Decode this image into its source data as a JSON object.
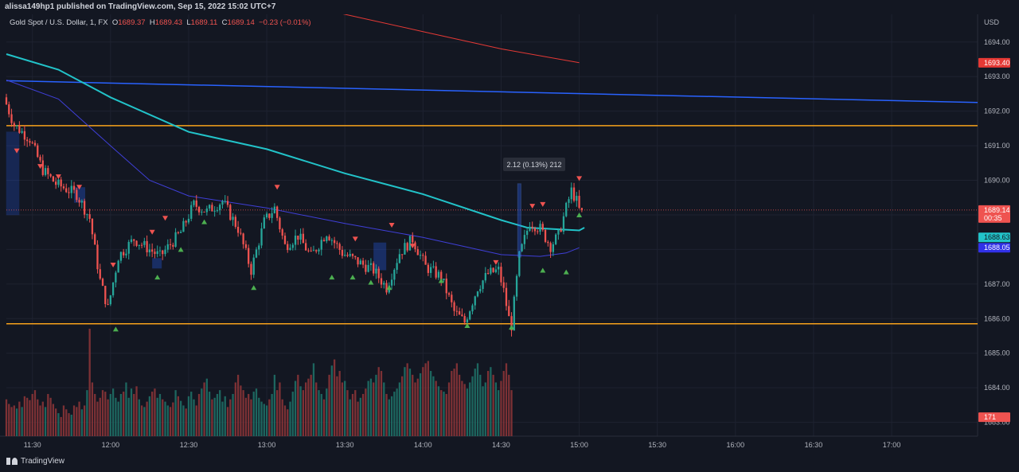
{
  "header": {
    "published": "alissa149hp1 published on TradingView.com, Sep 15, 2022 15:02 UTC+7"
  },
  "legend": {
    "symbol": "Gold Spot / U.S. Dollar, 1, FX",
    "o_label": "O",
    "o": "1689.37",
    "h_label": "H",
    "h": "1689.43",
    "l_label": "L",
    "l": "1689.11",
    "c_label": "C",
    "c": "1689.14",
    "change": "−0.23 (−0.01%)"
  },
  "axis": {
    "currency": "USD",
    "price_ticks": [
      "1694.00",
      "1693.00",
      "1692.00",
      "1691.00",
      "1690.00",
      "1687.00",
      "1686.00",
      "1685.00",
      "1684.00",
      "1683.00"
    ],
    "time_ticks": [
      "11:30",
      "12:00",
      "12:30",
      "13:00",
      "13:30",
      "14:00",
      "14:30",
      "15:00",
      "15:30",
      "16:00",
      "16:30",
      "17:00"
    ]
  },
  "price_labels": {
    "red_line": "1693.40",
    "last_price": "1689.14",
    "countdown": "00:35",
    "teal_ma": "1688.63",
    "blue_ma": "1688.05",
    "volume": "171"
  },
  "measure_label": "2.12 (0.13%) 212",
  "footer": {
    "brand": "TradingView"
  },
  "colors": {
    "background": "#131722",
    "up": "#26a69a",
    "down": "#ef5350",
    "support_resistance": "#f7a21b",
    "trend_line": "#2962ff",
    "teal_ma": "#22c3c9",
    "blue_ma": "#3f3fd8",
    "red_ma": "#e53935"
  },
  "chart_data": {
    "type": "candlestick",
    "title": "Gold Spot / U.S. Dollar, 1, FX",
    "ylabel": "USD",
    "ylim": [
      1682.6,
      1694.8
    ],
    "xlim": [
      "11:20",
      "17:33"
    ],
    "horizontal_lines": [
      1691.58,
      1685.85
    ],
    "trend_line": {
      "from": [
        "11:20",
        1692.88
      ],
      "to": [
        "17:33",
        1692.25
      ]
    },
    "measure": {
      "from": 1687.78,
      "to": 1689.9,
      "text": "2.12 (0.13%) 212"
    },
    "last_close": 1689.14,
    "anchors": [
      [
        "11:20",
        1692.4
      ],
      [
        "11:24",
        1691.6
      ],
      [
        "11:30",
        1691.2
      ],
      [
        "11:35",
        1690.3
      ],
      [
        "11:40",
        1689.9
      ],
      [
        "11:48",
        1689.6
      ],
      [
        "11:53",
        1688.9
      ],
      [
        "11:57",
        1687.1
      ],
      [
        "12:00",
        1686.3
      ],
      [
        "12:04",
        1687.8
      ],
      [
        "12:10",
        1688.3
      ],
      [
        "12:16",
        1688.0
      ],
      [
        "12:20",
        1687.8
      ],
      [
        "12:28",
        1688.5
      ],
      [
        "12:33",
        1689.3
      ],
      [
        "12:38",
        1689.1
      ],
      [
        "12:44",
        1689.4
      ],
      [
        "12:50",
        1688.6
      ],
      [
        "12:55",
        1687.4
      ],
      [
        "13:00",
        1688.8
      ],
      [
        "13:04",
        1689.2
      ],
      [
        "13:08",
        1688.1
      ],
      [
        "13:13",
        1688.4
      ],
      [
        "13:18",
        1687.8
      ],
      [
        "13:24",
        1688.5
      ],
      [
        "13:30",
        1687.9
      ],
      [
        "13:37",
        1687.6
      ],
      [
        "13:42",
        1687.4
      ],
      [
        "13:47",
        1686.9
      ],
      [
        "13:52",
        1687.9
      ],
      [
        "13:57",
        1688.3
      ],
      [
        "14:02",
        1687.5
      ],
      [
        "14:08",
        1687.2
      ],
      [
        "14:13",
        1686.2
      ],
      [
        "14:17",
        1685.9
      ],
      [
        "14:22",
        1686.9
      ],
      [
        "14:26",
        1687.3
      ],
      [
        "14:30",
        1687.4
      ],
      [
        "14:32",
        1686.8
      ],
      [
        "14:34",
        1686.0
      ],
      [
        "14:35",
        1685.8
      ],
      [
        "14:38",
        1687.8
      ],
      [
        "14:42",
        1688.8
      ],
      [
        "14:46",
        1688.6
      ],
      [
        "14:50",
        1688.1
      ],
      [
        "14:53",
        1688.4
      ],
      [
        "14:56",
        1689.2
      ],
      [
        "14:58",
        1689.7
      ],
      [
        "15:00",
        1689.4
      ],
      [
        "15:01",
        1689.14
      ]
    ],
    "teal_ma": [
      [
        "11:20",
        1693.65
      ],
      [
        "11:40",
        1693.2
      ],
      [
        "12:00",
        1692.4
      ],
      [
        "12:30",
        1691.4
      ],
      [
        "13:00",
        1690.9
      ],
      [
        "13:30",
        1690.2
      ],
      [
        "14:00",
        1689.6
      ],
      [
        "14:30",
        1688.85
      ],
      [
        "14:40",
        1688.63
      ],
      [
        "15:00",
        1688.55
      ],
      [
        "15:02",
        1688.63
      ]
    ],
    "blue_ma": [
      [
        "11:20",
        1692.9
      ],
      [
        "11:40",
        1692.35
      ],
      [
        "12:00",
        1691.0
      ],
      [
        "12:15",
        1690.0
      ],
      [
        "12:30",
        1689.55
      ],
      [
        "13:00",
        1689.2
      ],
      [
        "13:30",
        1688.75
      ],
      [
        "14:00",
        1688.35
      ],
      [
        "14:30",
        1687.85
      ],
      [
        "14:45",
        1687.8
      ],
      [
        "14:55",
        1687.9
      ],
      [
        "15:00",
        1688.05
      ]
    ],
    "red_ma": [
      [
        "13:20",
        1694.95
      ],
      [
        "13:30",
        1694.8
      ],
      [
        "14:00",
        1694.3
      ],
      [
        "14:30",
        1693.8
      ],
      [
        "15:00",
        1693.4
      ]
    ],
    "volume": {
      "last": 171,
      "bars": [
        48,
        42,
        38,
        40,
        36,
        45,
        38,
        52,
        50,
        47,
        55,
        60,
        48,
        40,
        45,
        38,
        55,
        50,
        42,
        36,
        30,
        25,
        40,
        35,
        30,
        28,
        40,
        38,
        45,
        35,
        40,
        60,
        140,
        70,
        55,
        45,
        50,
        60,
        58,
        48,
        55,
        62,
        50,
        45,
        55,
        58,
        70,
        50,
        62,
        55,
        65,
        48,
        40,
        38,
        45,
        52,
        58,
        62,
        50,
        55,
        48,
        45,
        40,
        38,
        44,
        60,
        52,
        46,
        40,
        36,
        52,
        58,
        48,
        40,
        55,
        62,
        70,
        75,
        58,
        48,
        50,
        55,
        60,
        45,
        52,
        38,
        48,
        55,
        70,
        80,
        66,
        60,
        50,
        55,
        48,
        58,
        62,
        50,
        45,
        42,
        40,
        48,
        55,
        80,
        60,
        70,
        48,
        40,
        35,
        45,
        58,
        72,
        80,
        65,
        60,
        70,
        75,
        80,
        95,
        70,
        60,
        55,
        48,
        62,
        80,
        92,
        100,
        78,
        85,
        70,
        72,
        60,
        48,
        55,
        60,
        45,
        50,
        55,
        62,
        72,
        75,
        70,
        80,
        90,
        85,
        70,
        55,
        48,
        52,
        58,
        62,
        70,
        78,
        90,
        95,
        88,
        80,
        70,
        75,
        82,
        90,
        95,
        98,
        85,
        78,
        72,
        65,
        60,
        58,
        55,
        70,
        85,
        88,
        95,
        80,
        72,
        68,
        62,
        70,
        78,
        88,
        95,
        80,
        65,
        70,
        85,
        90,
        80,
        70,
        60,
        72,
        85,
        95,
        80,
        60
      ]
    },
    "markers": [
      {
        "t": "11:24",
        "p": 1690.85,
        "dir": "down"
      },
      {
        "t": "11:33",
        "p": 1690.4,
        "dir": "down"
      },
      {
        "t": "11:40",
        "p": 1690.1,
        "dir": "down"
      },
      {
        "t": "11:48",
        "p": 1689.8,
        "dir": "down"
      },
      {
        "t": "12:01",
        "p": 1687.55,
        "dir": "down"
      },
      {
        "t": "12:16",
        "p": 1688.5,
        "dir": "down"
      },
      {
        "t": "12:21",
        "p": 1688.9,
        "dir": "down"
      },
      {
        "t": "13:04",
        "p": 1689.8,
        "dir": "down"
      },
      {
        "t": "13:48",
        "p": 1688.7,
        "dir": "down"
      },
      {
        "t": "13:56",
        "p": 1688.1,
        "dir": "down"
      },
      {
        "t": "13:34",
        "p": 1688.3,
        "dir": "down"
      },
      {
        "t": "14:28",
        "p": 1687.62,
        "dir": "down"
      },
      {
        "t": "14:42",
        "p": 1689.25,
        "dir": "down"
      },
      {
        "t": "14:46",
        "p": 1689.3,
        "dir": "down"
      },
      {
        "t": "15:00",
        "p": 1690.05,
        "dir": "down"
      },
      {
        "t": "12:02",
        "p": 1685.7,
        "dir": "up"
      },
      {
        "t": "12:18",
        "p": 1687.2,
        "dir": "up"
      },
      {
        "t": "12:27",
        "p": 1688.0,
        "dir": "up"
      },
      {
        "t": "12:36",
        "p": 1688.8,
        "dir": "up"
      },
      {
        "t": "12:55",
        "p": 1686.9,
        "dir": "up"
      },
      {
        "t": "13:25",
        "p": 1687.2,
        "dir": "up"
      },
      {
        "t": "13:33",
        "p": 1687.2,
        "dir": "up"
      },
      {
        "t": "13:40",
        "p": 1687.05,
        "dir": "up"
      },
      {
        "t": "13:47",
        "p": 1686.9,
        "dir": "up"
      },
      {
        "t": "14:07",
        "p": 1687.1,
        "dir": "up"
      },
      {
        "t": "14:34",
        "p": 1685.75,
        "dir": "up"
      },
      {
        "t": "14:46",
        "p": 1687.4,
        "dir": "up"
      },
      {
        "t": "14:55",
        "p": 1687.35,
        "dir": "up"
      },
      {
        "t": "15:00",
        "p": 1689.0,
        "dir": "up"
      },
      {
        "t": "14:17",
        "p": 1685.8,
        "dir": "up"
      }
    ]
  }
}
